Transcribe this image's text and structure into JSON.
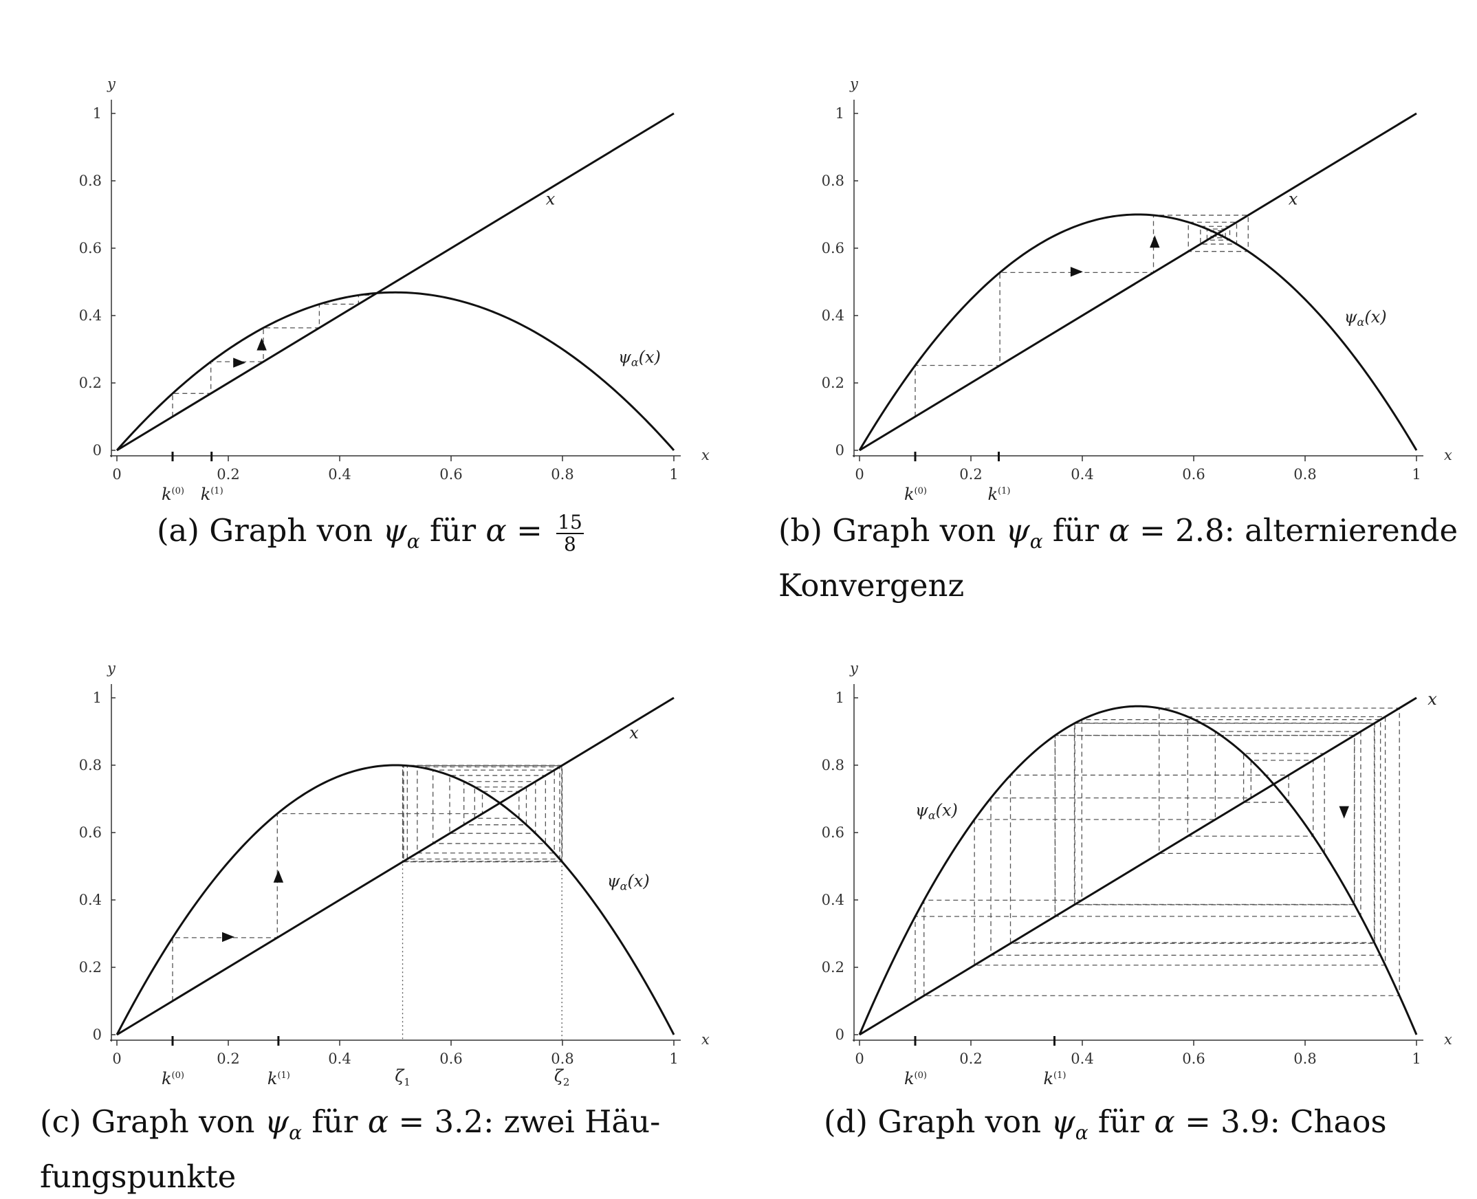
{
  "chart_data": [
    {
      "panel": "a",
      "type": "line",
      "alpha": 1.875,
      "xlim": [
        0,
        1
      ],
      "ylim": [
        0,
        1
      ],
      "x_ticks": [
        "0",
        "0.2",
        "0.4",
        "0.6",
        "0.8",
        "1"
      ],
      "y_ticks": [
        "0",
        "0.2",
        "0.4",
        "0.6",
        "0.8",
        "1"
      ],
      "xlabel": "x",
      "ylabel": "y",
      "series": [
        {
          "name": "x",
          "label_at": [
            0.77,
            0.73
          ]
        },
        {
          "name": "ψα(x)",
          "label_at": [
            0.9,
            0.26
          ]
        }
      ],
      "cobweb_start": 0.1,
      "cobweb_steps": 8,
      "arrows": [
        {
          "x": 0.22,
          "y": 0.26,
          "dir": "right"
        },
        {
          "x": 0.26,
          "y": 0.315,
          "dir": "up"
        }
      ],
      "k_labels": [
        {
          "text": "k",
          "sup": "(0)",
          "x": 0.1
        },
        {
          "text": "k",
          "sup": "(1)",
          "x": 0.17
        }
      ],
      "caption_prefix": "(a) Graph von ",
      "caption_psi": "ψ",
      "caption_sub": "α",
      "caption_mid": " für ",
      "caption_alpha": "α",
      "caption_eq": " = ",
      "caption_num": "15",
      "caption_den": "8",
      "caption_suffix": ""
    },
    {
      "panel": "b",
      "type": "line",
      "alpha": 2.8,
      "xlim": [
        0,
        1
      ],
      "ylim": [
        0,
        1
      ],
      "x_ticks": [
        "0",
        "0.2",
        "0.4",
        "0.6",
        "0.8",
        "1"
      ],
      "y_ticks": [
        "0",
        "0.2",
        "0.4",
        "0.6",
        "0.8",
        "1"
      ],
      "xlabel": "x",
      "ylabel": "y",
      "series": [
        {
          "name": "x",
          "label_at": [
            0.77,
            0.73
          ]
        },
        {
          "name": "ψα(x)",
          "label_at": [
            0.87,
            0.38
          ]
        }
      ],
      "cobweb_start": 0.1,
      "cobweb_steps": 12,
      "arrows": [
        {
          "x": 0.39,
          "y": 0.53,
          "dir": "right"
        },
        {
          "x": 0.53,
          "y": 0.62,
          "dir": "up"
        }
      ],
      "k_labels": [
        {
          "text": "k",
          "sup": "(0)",
          "x": 0.1
        },
        {
          "text": "k",
          "sup": "(1)",
          "x": 0.25
        }
      ],
      "caption_prefix": "(b) Graph von ",
      "caption_psi": "ψ",
      "caption_sub": "α",
      "caption_mid": " für ",
      "caption_alpha": "α",
      "caption_eq": " = 2.8: alternierende",
      "caption_line2": "Konvergenz"
    },
    {
      "panel": "c",
      "type": "line",
      "alpha": 3.2,
      "xlim": [
        0,
        1
      ],
      "ylim": [
        0,
        1
      ],
      "x_ticks": [
        "0",
        "0.2",
        "0.4",
        "0.6",
        "0.8",
        "1"
      ],
      "y_ticks": [
        "0",
        "0.2",
        "0.4",
        "0.6",
        "0.8",
        "1"
      ],
      "xlabel": "x",
      "ylabel": "y",
      "series": [
        {
          "name": "x",
          "label_at": [
            0.92,
            0.88
          ]
        },
        {
          "name": "ψα(x)",
          "label_at": [
            0.88,
            0.44
          ]
        }
      ],
      "cobweb_start": 0.1,
      "cobweb_steps": 24,
      "arrows": [
        {
          "x": 0.2,
          "y": 0.29,
          "dir": "right"
        },
        {
          "x": 0.29,
          "y": 0.47,
          "dir": "up"
        }
      ],
      "k_labels": [
        {
          "text": "k",
          "sup": "(0)",
          "x": 0.1
        },
        {
          "text": "k",
          "sup": "(1)",
          "x": 0.29
        }
      ],
      "zeta": [
        {
          "text": "ζ",
          "sub": "1",
          "x": 0.513
        },
        {
          "text": "ζ",
          "sub": "2",
          "x": 0.799
        }
      ],
      "caption_prefix": "(c) Graph von ",
      "caption_psi": "ψ",
      "caption_sub": "α",
      "caption_mid": " für ",
      "caption_alpha": "α",
      "caption_eq": " = 3.2: zwei Häu-",
      "caption_line2": "fungspunkte"
    },
    {
      "panel": "d",
      "type": "line",
      "alpha": 3.9,
      "xlim": [
        0,
        1
      ],
      "ylim": [
        0,
        1
      ],
      "x_ticks": [
        "0",
        "0.2",
        "0.4",
        "0.6",
        "0.8",
        "1"
      ],
      "y_ticks": [
        "0",
        "0.2",
        "0.4",
        "0.6",
        "0.8",
        "1"
      ],
      "xlabel": "x",
      "ylabel": "y",
      "series": [
        {
          "name": "x",
          "label_at": [
            1.02,
            0.98
          ]
        },
        {
          "name": "ψα(x)",
          "label_at": [
            0.1,
            0.65
          ]
        }
      ],
      "cobweb_start": 0.1,
      "cobweb_steps": 26,
      "arrows": [
        {
          "x": 0.87,
          "y": 0.66,
          "dir": "down"
        }
      ],
      "k_labels": [
        {
          "text": "k",
          "sup": "(0)",
          "x": 0.1
        },
        {
          "text": "k",
          "sup": "(1)",
          "x": 0.35
        }
      ],
      "caption_prefix": "(d) Graph von ",
      "caption_psi": "ψ",
      "caption_sub": "α",
      "caption_mid": " für ",
      "caption_alpha": "α",
      "caption_eq": " = 3.9: Chaos"
    }
  ]
}
